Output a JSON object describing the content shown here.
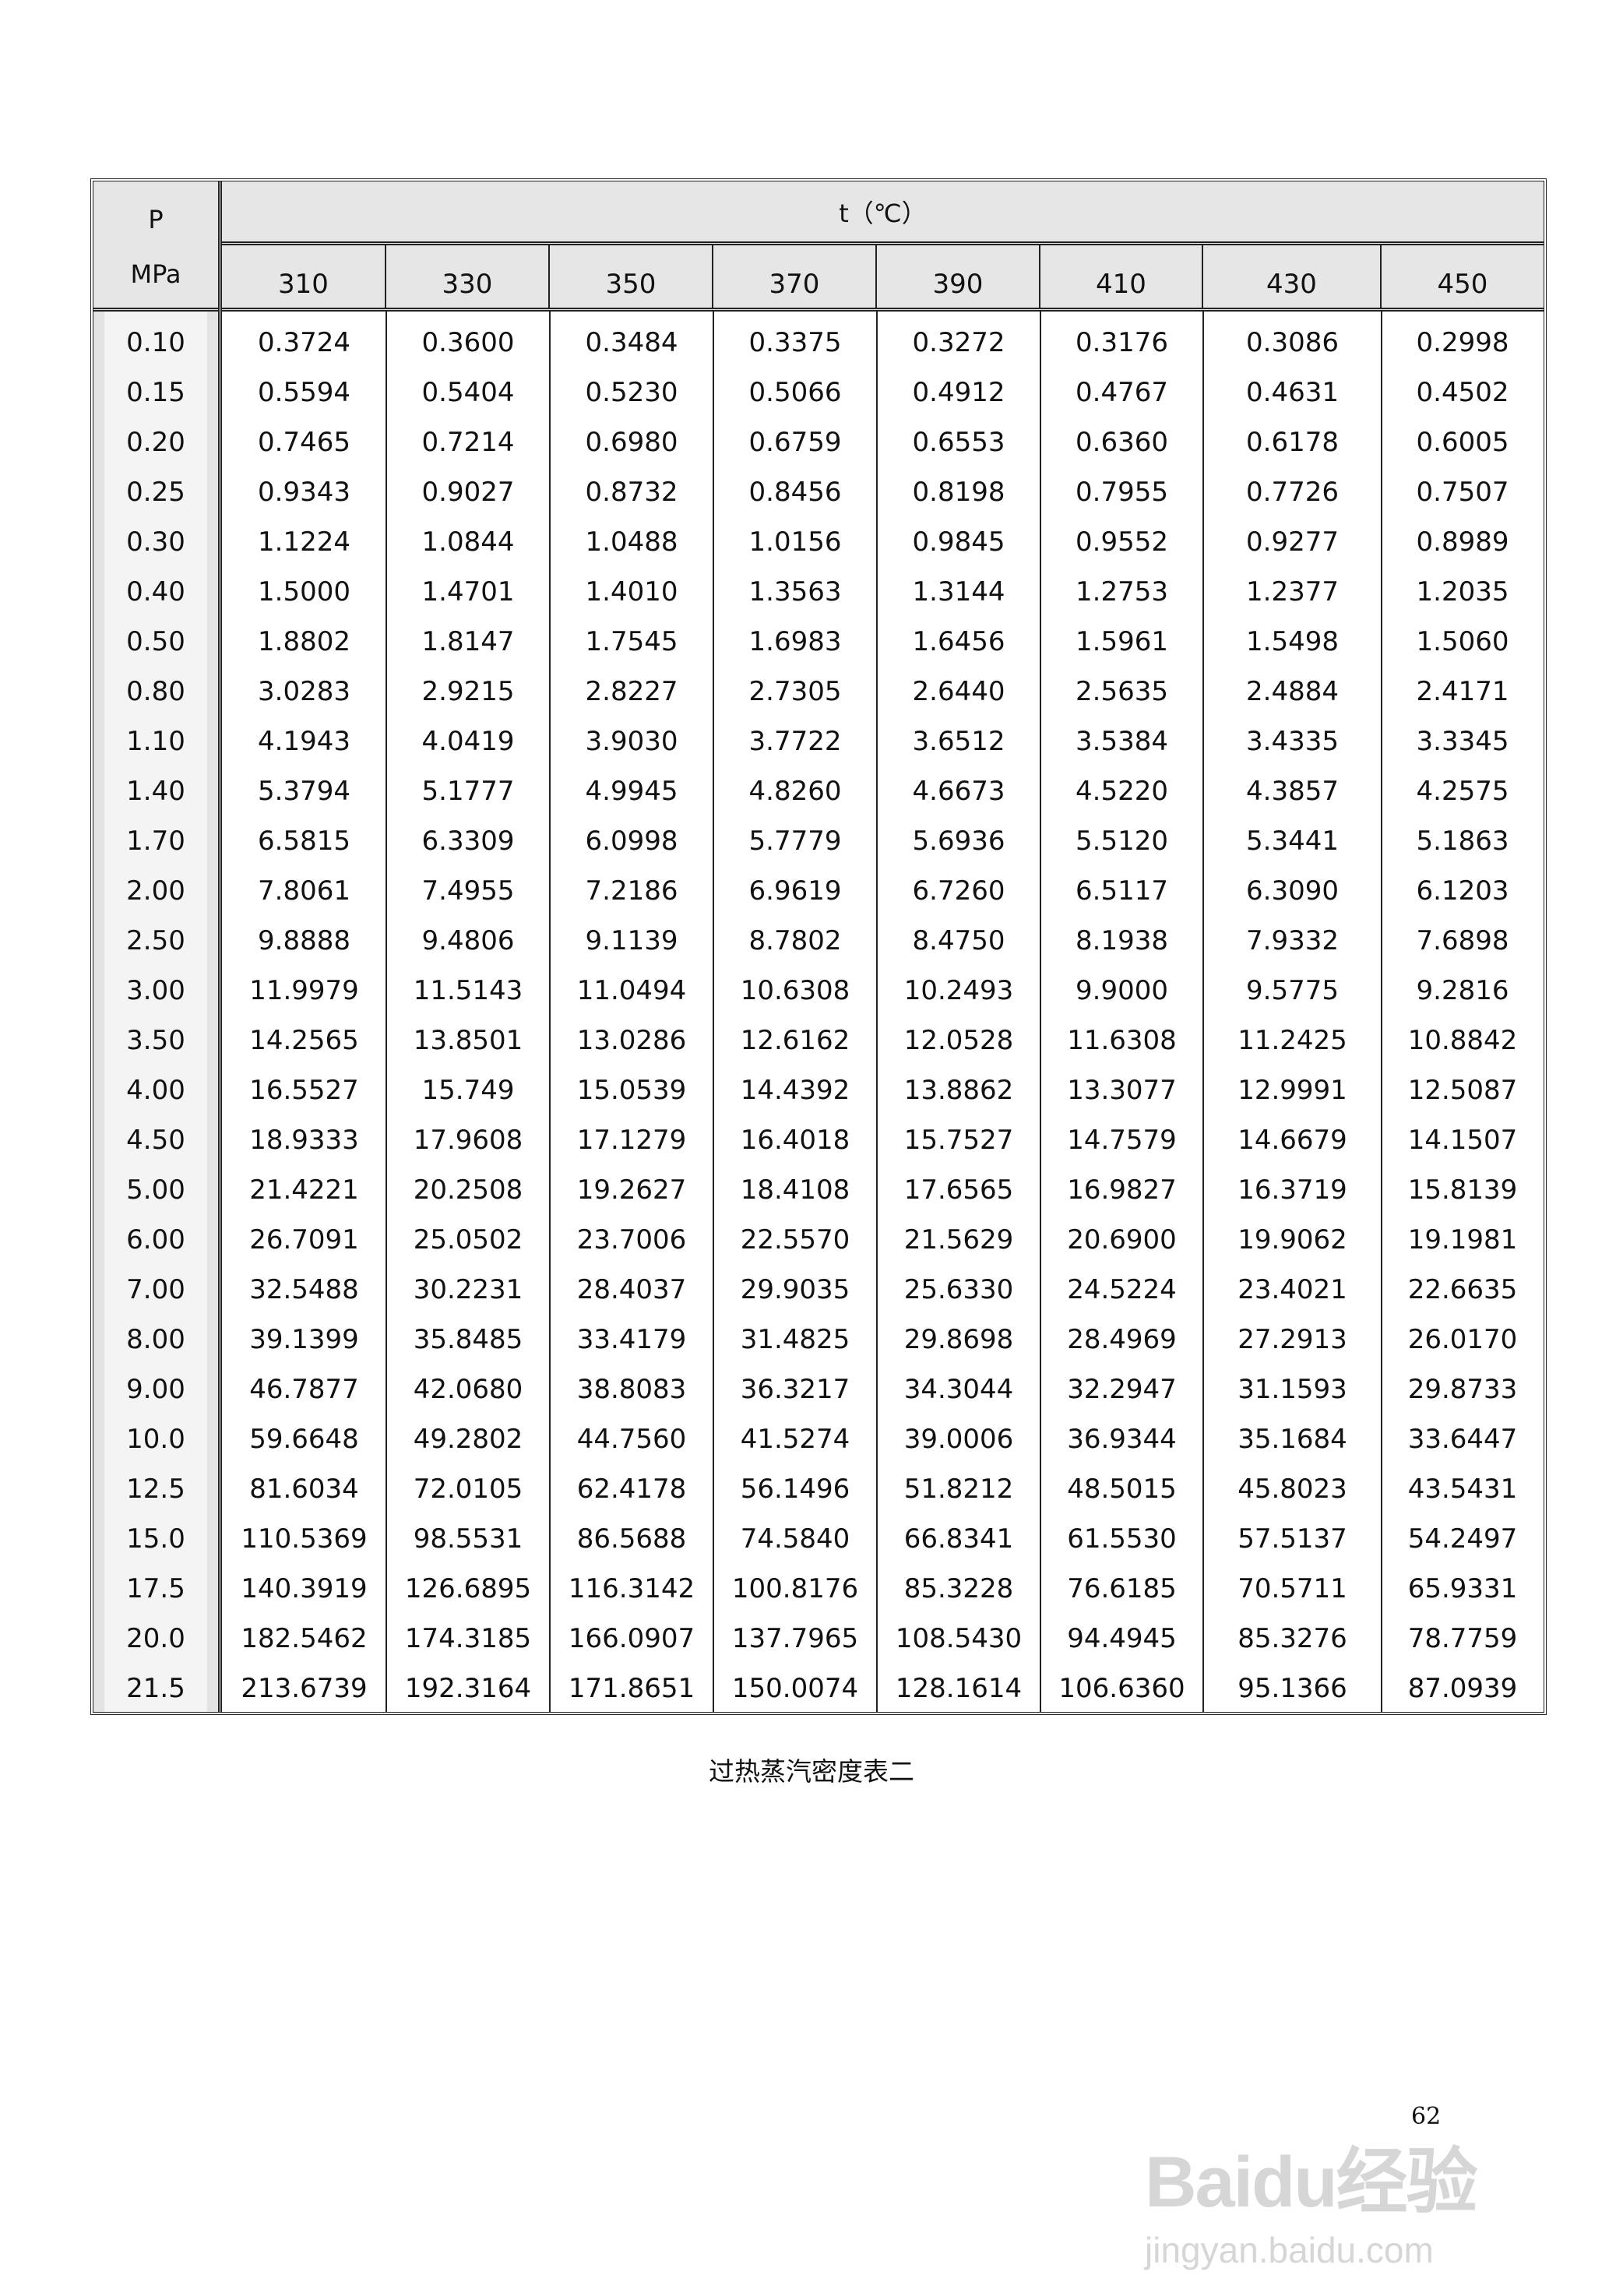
{
  "table": {
    "p_header": {
      "symbol": "P",
      "unit": "MPa"
    },
    "t_header": "t（℃）",
    "columns": [
      "310",
      "330",
      "350",
      "370",
      "390",
      "410",
      "430",
      "450"
    ],
    "rows": [
      {
        "p": "0.10",
        "v": [
          "0.3724",
          "0.3600",
          "0.3484",
          "0.3375",
          "0.3272",
          "0.3176",
          "0.3086",
          "0.2998"
        ]
      },
      {
        "p": "0.15",
        "v": [
          "0.5594",
          "0.5404",
          "0.5230",
          "0.5066",
          "0.4912",
          "0.4767",
          "0.4631",
          "0.4502"
        ]
      },
      {
        "p": "0.20",
        "v": [
          "0.7465",
          "0.7214",
          "0.6980",
          "0.6759",
          "0.6553",
          "0.6360",
          "0.6178",
          "0.6005"
        ]
      },
      {
        "p": "0.25",
        "v": [
          "0.9343",
          "0.9027",
          "0.8732",
          "0.8456",
          "0.8198",
          "0.7955",
          "0.7726",
          "0.7507"
        ]
      },
      {
        "p": "0.30",
        "v": [
          "1.1224",
          "1.0844",
          "1.0488",
          "1.0156",
          "0.9845",
          "0.9552",
          "0.9277",
          "0.8989"
        ]
      },
      {
        "p": "0.40",
        "v": [
          "1.5000",
          "1.4701",
          "1.4010",
          "1.3563",
          "1.3144",
          "1.2753",
          "1.2377",
          "1.2035"
        ]
      },
      {
        "p": "0.50",
        "v": [
          "1.8802",
          "1.8147",
          "1.7545",
          "1.6983",
          "1.6456",
          "1.5961",
          "1.5498",
          "1.5060"
        ]
      },
      {
        "p": "0.80",
        "v": [
          "3.0283",
          "2.9215",
          "2.8227",
          "2.7305",
          "2.6440",
          "2.5635",
          "2.4884",
          "2.4171"
        ]
      },
      {
        "p": "1.10",
        "v": [
          "4.1943",
          "4.0419",
          "3.9030",
          "3.7722",
          "3.6512",
          "3.5384",
          "3.4335",
          "3.3345"
        ]
      },
      {
        "p": "1.40",
        "v": [
          "5.3794",
          "5.1777",
          "4.9945",
          "4.8260",
          "4.6673",
          "4.5220",
          "4.3857",
          "4.2575"
        ]
      },
      {
        "p": "1.70",
        "v": [
          "6.5815",
          "6.3309",
          "6.0998",
          "5.7779",
          "5.6936",
          "5.5120",
          "5.3441",
          "5.1863"
        ]
      },
      {
        "p": "2.00",
        "v": [
          "7.8061",
          "7.4955",
          "7.2186",
          "6.9619",
          "6.7260",
          "6.5117",
          "6.3090",
          "6.1203"
        ]
      },
      {
        "p": "2.50",
        "v": [
          "9.8888",
          "9.4806",
          "9.1139",
          "8.7802",
          "8.4750",
          "8.1938",
          "7.9332",
          "7.6898"
        ]
      },
      {
        "p": "3.00",
        "v": [
          "11.9979",
          "11.5143",
          "11.0494",
          "10.6308",
          "10.2493",
          "9.9000",
          "9.5775",
          "9.2816"
        ]
      },
      {
        "p": "3.50",
        "v": [
          "14.2565",
          "13.8501",
          "13.0286",
          "12.6162",
          "12.0528",
          "11.6308",
          "11.2425",
          "10.8842"
        ]
      },
      {
        "p": "4.00",
        "v": [
          "16.5527",
          "15.749",
          "15.0539",
          "14.4392",
          "13.8862",
          "13.3077",
          "12.9991",
          "12.5087"
        ]
      },
      {
        "p": "4.50",
        "v": [
          "18.9333",
          "17.9608",
          "17.1279",
          "16.4018",
          "15.7527",
          "14.7579",
          "14.6679",
          "14.1507"
        ]
      },
      {
        "p": "5.00",
        "v": [
          "21.4221",
          "20.2508",
          "19.2627",
          "18.4108",
          "17.6565",
          "16.9827",
          "16.3719",
          "15.8139"
        ]
      },
      {
        "p": "6.00",
        "v": [
          "26.7091",
          "25.0502",
          "23.7006",
          "22.5570",
          "21.5629",
          "20.6900",
          "19.9062",
          "19.1981"
        ]
      },
      {
        "p": "7.00",
        "v": [
          "32.5488",
          "30.2231",
          "28.4037",
          "29.9035",
          "25.6330",
          "24.5224",
          "23.4021",
          "22.6635"
        ]
      },
      {
        "p": "8.00",
        "v": [
          "39.1399",
          "35.8485",
          "33.4179",
          "31.4825",
          "29.8698",
          "28.4969",
          "27.2913",
          "26.0170"
        ]
      },
      {
        "p": "9.00",
        "v": [
          "46.7877",
          "42.0680",
          "38.8083",
          "36.3217",
          "34.3044",
          "32.2947",
          "31.1593",
          "29.8733"
        ]
      },
      {
        "p": "10.0",
        "v": [
          "59.6648",
          "49.2802",
          "44.7560",
          "41.5274",
          "39.0006",
          "36.9344",
          "35.1684",
          "33.6447"
        ]
      },
      {
        "p": "12.5",
        "v": [
          "81.6034",
          "72.0105",
          "62.4178",
          "56.1496",
          "51.8212",
          "48.5015",
          "45.8023",
          "43.5431"
        ]
      },
      {
        "p": "15.0",
        "v": [
          "110.5369",
          "98.5531",
          "86.5688",
          "74.5840",
          "66.8341",
          "61.5530",
          "57.5137",
          "54.2497"
        ]
      },
      {
        "p": "17.5",
        "v": [
          "140.3919",
          "126.6895",
          "116.3142",
          "100.8176",
          "85.3228",
          "76.6185",
          "70.5711",
          "65.9331"
        ]
      },
      {
        "p": "20.0",
        "v": [
          "182.5462",
          "174.3185",
          "166.0907",
          "137.7965",
          "108.5430",
          "94.4945",
          "85.3276",
          "78.7759"
        ]
      },
      {
        "p": "21.5",
        "v": [
          "213.6739",
          "192.3164",
          "171.8651",
          "150.0074",
          "128.1614",
          "106.6360",
          "95.1366",
          "87.0939"
        ]
      }
    ]
  },
  "caption": "过热蒸汽密度表二",
  "page_number": "62",
  "watermark": {
    "logo_text": "Baidu经验",
    "url_text": "jingyan.baidu.com"
  },
  "colors": {
    "header_bg": "#e6e6e6",
    "p_column_bg": "#f4f4f4",
    "border": "#222222"
  }
}
